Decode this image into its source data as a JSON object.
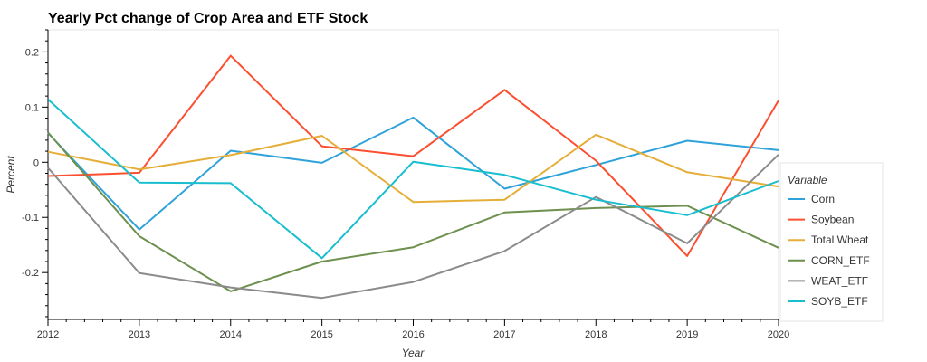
{
  "chart_data": {
    "type": "line",
    "title": "Yearly Pct change of Crop Area and ETF Stock",
    "xlabel": "Year",
    "ylabel": "Percent",
    "x": [
      2012,
      2013,
      2014,
      2015,
      2016,
      2017,
      2018,
      2019,
      2020
    ],
    "xlim": [
      2012,
      2020
    ],
    "ylim": [
      -0.285,
      0.24
    ],
    "yticks": [
      -0.2,
      -0.1,
      0,
      0.1,
      0.2
    ],
    "ytick_labels": [
      "-0.2",
      "-0.1",
      "0",
      "0.1",
      "0.2"
    ],
    "grid": false,
    "legend": {
      "title": "Variable",
      "placement": "right"
    },
    "series": [
      {
        "name": "Corn",
        "color": "#30a2da",
        "values": [
          0.053,
          -0.122,
          0.021,
          -0.001,
          0.081,
          -0.048,
          -0.005,
          0.039,
          0.022
        ]
      },
      {
        "name": "Soybean",
        "color": "#fc4f30",
        "values": [
          -0.025,
          -0.019,
          0.193,
          0.029,
          0.011,
          0.131,
          0.003,
          -0.17,
          0.112
        ]
      },
      {
        "name": "Total Wheat",
        "color": "#e5ae38",
        "values": [
          0.019,
          -0.013,
          0.013,
          0.048,
          -0.072,
          -0.068,
          0.05,
          -0.018,
          -0.044
        ]
      },
      {
        "name": "CORN_ETF",
        "color": "#6d904f",
        "values": [
          0.054,
          -0.134,
          -0.234,
          -0.18,
          -0.154,
          -0.091,
          -0.083,
          -0.079,
          -0.155
        ]
      },
      {
        "name": "WEAT_ETF",
        "color": "#8b8b8b",
        "values": [
          -0.01,
          -0.201,
          -0.227,
          -0.246,
          -0.217,
          -0.161,
          -0.063,
          -0.147,
          0.014
        ]
      },
      {
        "name": "SOYB_ETF",
        "color": "#17becf",
        "values": [
          0.114,
          -0.037,
          -0.038,
          -0.174,
          0.001,
          -0.023,
          -0.068,
          -0.096,
          -0.034
        ]
      }
    ]
  }
}
